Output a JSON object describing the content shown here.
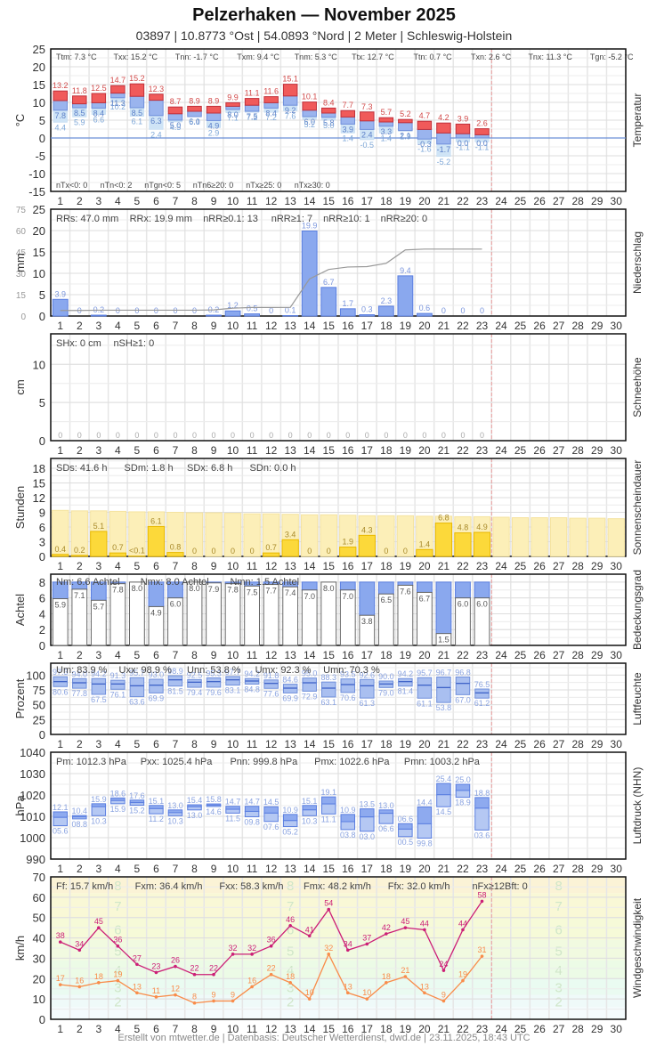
{
  "header": {
    "title": "Pelzerhaken  —  November 2025",
    "subtitle": "03897  |  10.8773 °Ost  |  54.0893 °Nord  |  2 Meter  |  Schleswig-Holstein"
  },
  "footer": "Erstellt von mtwetter.de | Datenbasis: Deutscher Wetterdienst, dwd.de | 23.11.2025, 18:43 UTC",
  "colors": {
    "tmax": "#f05a5a",
    "tmean": "#9ab4ee",
    "tmin": "#cfe4f6",
    "bar_blue": "#8aa8ee",
    "sun": "#fcd93a",
    "sun_bg": "#fcefb8",
    "humid": "#9ab4ee",
    "gust": "#cc1f77",
    "wind": "#f98c4a",
    "today_line": "#e89a9a"
  },
  "chart_data": [
    {
      "type": "bar",
      "id": "temperatur",
      "title": "Temperatur",
      "ylabel": "°C",
      "ylim": [
        -15,
        25
      ],
      "yticks": [
        25,
        20,
        15,
        10,
        5,
        0,
        -5,
        -10,
        -15
      ],
      "x": [
        1,
        2,
        3,
        4,
        5,
        6,
        7,
        8,
        9,
        10,
        11,
        12,
        13,
        14,
        15,
        16,
        17,
        18,
        19,
        20,
        21,
        22,
        23
      ],
      "series": [
        {
          "name": "Tmax",
          "values": [
            13.2,
            11.8,
            12.5,
            14.7,
            15.2,
            12.3,
            8.7,
            8.9,
            8.9,
            9.9,
            11.1,
            11.6,
            15.1,
            10.1,
            8.4,
            7.7,
            7.3,
            5.7,
            5.2,
            4.7,
            4.2,
            3.9,
            2.6
          ]
        },
        {
          "name": "Tmittel",
          "values": [
            10.5,
            9.6,
            9.9,
            12.6,
            11.7,
            10.6,
            6.8,
            7.5,
            7.0,
            8.9,
            9.2,
            9.9,
            11.8,
            7.8,
            7.0,
            5.9,
            4.8,
            4.5,
            4.3,
            2.4,
            1.4,
            1.2,
            0.9
          ]
        },
        {
          "name": "Tmin",
          "values": [
            7.8,
            8.5,
            8.4,
            11.3,
            8.5,
            6.3,
            5.0,
            6.0,
            4.9,
            8.0,
            7.5,
            8.4,
            9.2,
            6.0,
            5.8,
            3.9,
            2.4,
            3.3,
            2.1,
            -0.3,
            -1.7,
            0.0,
            0.0
          ]
        },
        {
          "name": "Tmin5cm",
          "values": [
            4.4,
            5.9,
            6.6,
            10.2,
            6.1,
            2.4,
            4.5,
            6.1,
            2.9,
            7.1,
            7.2,
            7.2,
            7.6,
            5.2,
            5.0,
            1.4,
            -0.5,
            1.4,
            1.9,
            -1.6,
            -5.2,
            -1.1,
            -1.1
          ]
        }
      ],
      "stats_top": [
        "Ttm: 7.3 °C",
        "Txx: 15.2 °C",
        "Tnn: -1.7 °C",
        "Txm: 9.4 °C",
        "Tnm: 5.3 °C",
        "Ttx: 12.7 °C",
        "Ttn: 0.7 °C",
        "Txn: 2.6 °C",
        "Tnx: 11.3 °C",
        "Tgn: -5.2 °C"
      ],
      "stats_bottom": [
        "nTx<0: 0",
        "nTn<0: 2",
        "nTgn<0: 5",
        "nTn6≥20: 0",
        "nTx≥25: 0",
        "nTx≥30: 0"
      ]
    },
    {
      "type": "bar",
      "id": "niederschlag",
      "title": "Niederschlag",
      "ylabel": "mm",
      "ylim": [
        0,
        25
      ],
      "yticks": [
        25,
        20,
        15,
        10,
        5,
        0
      ],
      "yticks_secondary": [
        75,
        60,
        45,
        30,
        15,
        0
      ],
      "x": [
        1,
        2,
        3,
        4,
        5,
        6,
        7,
        8,
        9,
        10,
        11,
        12,
        13,
        14,
        15,
        16,
        17,
        18,
        19,
        20,
        21,
        22,
        23
      ],
      "values": [
        3.9,
        0,
        0.2,
        0,
        0,
        0,
        0,
        0,
        0.2,
        1.2,
        0.5,
        0,
        0.1,
        19.9,
        6.7,
        1.7,
        0.3,
        2.3,
        9.4,
        0.6,
        0,
        0,
        0
      ],
      "labels": [
        "3.9",
        "0",
        "0.2",
        "0",
        "0",
        "0",
        "0",
        "0",
        "0.2",
        "1.2",
        "0.5",
        "0",
        "0.1",
        "19.9",
        "6.7",
        "1.7",
        "0.3",
        "2.3",
        "9.4",
        "0.6",
        "0",
        "0",
        "0"
      ],
      "cumulative_line": true,
      "stats": [
        "RRs: 47.0 mm",
        "RRx: 19.9 mm",
        "nRR≥0.1: 13",
        "nRR≥1: 7",
        "nRR≥10: 1",
        "nRR≥20: 0"
      ]
    },
    {
      "type": "bar",
      "id": "schneehoehe",
      "title": "Schneehöhe",
      "ylabel": "cm",
      "ylim": [
        0,
        14
      ],
      "yticks": [
        10,
        5,
        0
      ],
      "x": [
        1,
        2,
        3,
        4,
        5,
        6,
        7,
        8,
        9,
        10,
        11,
        12,
        13,
        14,
        15,
        16,
        17,
        18,
        19,
        20,
        21,
        22,
        23
      ],
      "values": [
        0,
        0,
        0,
        0,
        0,
        0,
        0,
        0,
        0,
        0,
        0,
        0,
        0,
        0,
        0,
        0,
        0,
        0,
        0,
        0,
        0,
        0,
        0
      ],
      "stats": [
        "SHx: 0 cm",
        "nSH≥1: 0"
      ]
    },
    {
      "type": "bar",
      "id": "sonnenscheindauer",
      "title": "Sonnenscheindauer",
      "ylabel": "Stunden",
      "ylim": [
        0,
        20
      ],
      "yticks": [
        18,
        15,
        12,
        9,
        6,
        3,
        0
      ],
      "x": [
        1,
        2,
        3,
        4,
        5,
        6,
        7,
        8,
        9,
        10,
        11,
        12,
        13,
        14,
        15,
        16,
        17,
        18,
        19,
        20,
        21,
        22,
        23
      ],
      "values": [
        0.4,
        0.2,
        5.1,
        0.7,
        0.05,
        6.1,
        0.8,
        0,
        0,
        0,
        0,
        0.7,
        3.4,
        0,
        0,
        1.9,
        4.3,
        0,
        0,
        1.4,
        6.8,
        4.8,
        4.9
      ],
      "labels": [
        "0.4",
        "0.2",
        "5.1",
        "0.7",
        "<0.1",
        "6.1",
        "0.8",
        "0",
        "0",
        "0",
        "0",
        "0.7",
        "3.4",
        "0",
        "0",
        "1.9",
        "4.3",
        "0",
        "0",
        "1.4",
        "6.8",
        "4.8",
        "4.9"
      ],
      "possible": [
        9.4,
        9.3,
        9.3,
        9.2,
        9.1,
        9.1,
        9.0,
        8.9,
        8.9,
        8.8,
        8.7,
        8.7,
        8.6,
        8.5,
        8.5,
        8.4,
        8.3,
        8.3,
        8.3,
        8.2,
        8.2,
        8.1,
        8.1,
        8.0,
        7.9,
        7.9,
        7.9,
        7.8,
        7.8,
        7.7
      ],
      "stats": [
        "SDs: 41.6 h",
        "SDm: 1.8 h",
        "SDx: 6.8 h",
        "SDn: 0.0 h"
      ]
    },
    {
      "type": "bar",
      "id": "bedeckungsgrad",
      "title": "Bedeckungsgrad",
      "ylabel": "Achtel",
      "ylim": [
        0,
        9
      ],
      "yticks": [
        8,
        6,
        4,
        2,
        0
      ],
      "x": [
        1,
        2,
        3,
        4,
        5,
        6,
        7,
        8,
        9,
        10,
        11,
        12,
        13,
        14,
        15,
        16,
        17,
        18,
        19,
        20,
        21,
        22,
        23
      ],
      "values": [
        5.9,
        7.1,
        5.7,
        7.8,
        8.0,
        4.9,
        6.0,
        8.0,
        7.9,
        7.8,
        7.5,
        7.7,
        7.4,
        7.0,
        8.0,
        7.0,
        3.8,
        6.5,
        7.6,
        6.7,
        1.5,
        6.0,
        6.0
      ],
      "stats": [
        "Nm: 6.6 Achtel",
        "Nmx: 8.0 Achtel",
        "Nmn: 1.5 Achtel"
      ]
    },
    {
      "type": "bar",
      "id": "luftfeuchte",
      "title": "Luftfeuchte",
      "ylabel": "Prozent",
      "ylim": [
        0,
        120
      ],
      "yticks": [
        100,
        75,
        50,
        25,
        0
      ],
      "x": [
        1,
        2,
        3,
        4,
        5,
        6,
        7,
        8,
        9,
        10,
        11,
        12,
        13,
        14,
        15,
        16,
        17,
        18,
        19,
        20,
        21,
        22,
        23
      ],
      "series": [
        {
          "name": "Umax",
          "values": [
            97.3,
            94.0,
            94.2,
            91.3,
            95.7,
            93.0,
            98.9,
            92.5,
            95.3,
            97.7,
            94.2,
            91.8,
            84.6,
            95.0,
            88.3,
            93.5,
            92.6,
            90.0,
            94.2,
            95.7,
            96.7,
            96.8,
            76.5
          ]
        },
        {
          "name": "Umittel",
          "values": [
            89,
            87,
            85,
            85,
            82,
            83,
            92,
            88,
            89,
            92,
            90,
            86,
            78,
            87,
            78,
            84,
            82,
            85,
            89,
            83,
            79,
            86,
            70
          ]
        },
        {
          "name": "Umin",
          "values": [
            80.6,
            77.8,
            67.5,
            76.1,
            63.6,
            69.9,
            81.5,
            79.4,
            79.6,
            83.1,
            84.8,
            77.6,
            69.9,
            72.9,
            63.1,
            70.6,
            61.3,
            79.0,
            81.4,
            61.1,
            53.8,
            67.0,
            61.2
          ]
        }
      ],
      "stats": [
        "Um: 83.9 %",
        "Uxx: 98.9 %",
        "Unn: 53.8 %",
        "Umx: 92.3 %",
        "Umn: 70.3 %"
      ]
    },
    {
      "type": "bar",
      "id": "luftdruck",
      "title": "Luftdruck (NHN)",
      "ylabel": "hPa",
      "ylim": [
        990,
        1040
      ],
      "yticks": [
        1040,
        1030,
        1020,
        1010,
        1000,
        990
      ],
      "x": [
        1,
        2,
        3,
        4,
        5,
        6,
        7,
        8,
        9,
        10,
        11,
        12,
        13,
        14,
        15,
        16,
        17,
        18,
        19,
        20,
        21,
        22,
        23
      ],
      "series": [
        {
          "name": "Pmax",
          "values": [
            1012.1,
            1010.4,
            1015.9,
            1018.6,
            1017.6,
            1015.1,
            1013.0,
            1015.4,
            1015.8,
            1014.7,
            1014.7,
            1014.5,
            1010.9,
            1015.1,
            1019.1,
            1010.9,
            1013.5,
            1013.0,
            1006.6,
            1014.4,
            1025.4,
            1025.0,
            1018.8
          ]
        },
        {
          "name": "Pmittel",
          "values": [
            1009.5,
            1009.7,
            1014.5,
            1017.4,
            1016.4,
            1013.6,
            1011.7,
            1014.5,
            1015.2,
            1013.3,
            1012.3,
            1011.5,
            1008.0,
            1013.0,
            1015.8,
            1007.5,
            1009.7,
            1011.4,
            1004.0,
            1006.5,
            1020.1,
            1022.1,
            1013.8
          ]
        },
        {
          "name": "Pmin",
          "values": [
            1005.6,
            1008.8,
            1010.3,
            1015.9,
            1015.2,
            1011.2,
            1010.3,
            1013.0,
            1014.6,
            1011.5,
            1009.8,
            1007.6,
            1005.2,
            1010.3,
            1011.1,
            1003.8,
            1003.0,
            1006.6,
            1000.5,
            999.8,
            1014.5,
            1018.9,
            1003.6
          ]
        }
      ],
      "max_labels": [
        "12.1",
        "10.4",
        "15.9",
        "18.6",
        "17.6",
        "15.1",
        "13.0",
        "15.4",
        "15.8",
        "14.7",
        "14.7",
        "14.5",
        "10.9",
        "15.1",
        "19.1",
        "10.9",
        "13.5",
        "13.0",
        "06.6",
        "14.4",
        "25.4",
        "25.0",
        "18.8"
      ],
      "min_labels": [
        "05.6",
        "08.8",
        "10.3",
        "15.9",
        "15.2",
        "11.2",
        "10.3",
        "13.0",
        "14.6",
        "11.5",
        "09.8",
        "07.6",
        "05.2",
        "10.3",
        "11.1",
        "03.8",
        "03.0",
        "06.6",
        "00.5",
        "99.8",
        "14.5",
        "18.9",
        "03.6"
      ],
      "stats": [
        "Pm: 1012.3 hPa",
        "Pxx: 1025.4 hPa",
        "Pnn: 999.8 hPa",
        "Pmx: 1022.6 hPa",
        "Pmn: 1003.2 hPa"
      ]
    },
    {
      "type": "line",
      "id": "windgeschwindigkeit",
      "title": "Windgeschwindigkeit",
      "ylabel": "km/h",
      "ylim": [
        0,
        70
      ],
      "yticks": [
        70,
        60,
        50,
        40,
        30,
        20,
        10,
        0
      ],
      "x": [
        1,
        2,
        3,
        4,
        5,
        6,
        7,
        8,
        9,
        10,
        11,
        12,
        13,
        14,
        15,
        16,
        17,
        18,
        19,
        20,
        21,
        22,
        23
      ],
      "series": [
        {
          "name": "Böen (Fx)",
          "values": [
            38,
            34,
            45,
            36,
            27,
            23,
            26,
            22,
            22,
            32,
            32,
            36,
            46,
            41,
            54,
            34,
            37,
            42,
            45,
            44,
            24,
            44,
            58
          ]
        },
        {
          "name": "Mittelwind (Fm)",
          "values": [
            17,
            16,
            18,
            19,
            13,
            11,
            12,
            8,
            9,
            9,
            16,
            22,
            18,
            10,
            32,
            13,
            10,
            18,
            21,
            13,
            9,
            19,
            31
          ]
        }
      ],
      "beaufort_bands": [
        {
          "bft": 2,
          "from": 6,
          "to": 12
        },
        {
          "bft": 3,
          "from": 12,
          "to": 20
        },
        {
          "bft": 4,
          "from": 20,
          "to": 29
        },
        {
          "bft": 5,
          "from": 29,
          "to": 39
        },
        {
          "bft": 6,
          "from": 39,
          "to": 50
        },
        {
          "bft": 7,
          "from": 50,
          "to": 62
        },
        {
          "bft": 8,
          "from": 62,
          "to": 75
        }
      ],
      "stats": [
        "Ff: 15.7 km/h",
        "Fxm: 36.4 km/h",
        "Fxx: 58.3 km/h",
        "Fmx: 48.2 km/h",
        "Ffx: 32.0 km/h",
        "nFx≥12Bft: 0"
      ]
    }
  ],
  "x_axis": {
    "days": [
      1,
      2,
      3,
      4,
      5,
      6,
      7,
      8,
      9,
      10,
      11,
      12,
      13,
      14,
      15,
      16,
      17,
      18,
      19,
      20,
      21,
      22,
      23,
      24,
      25,
      26,
      27,
      28,
      29,
      30
    ],
    "today": 23
  }
}
